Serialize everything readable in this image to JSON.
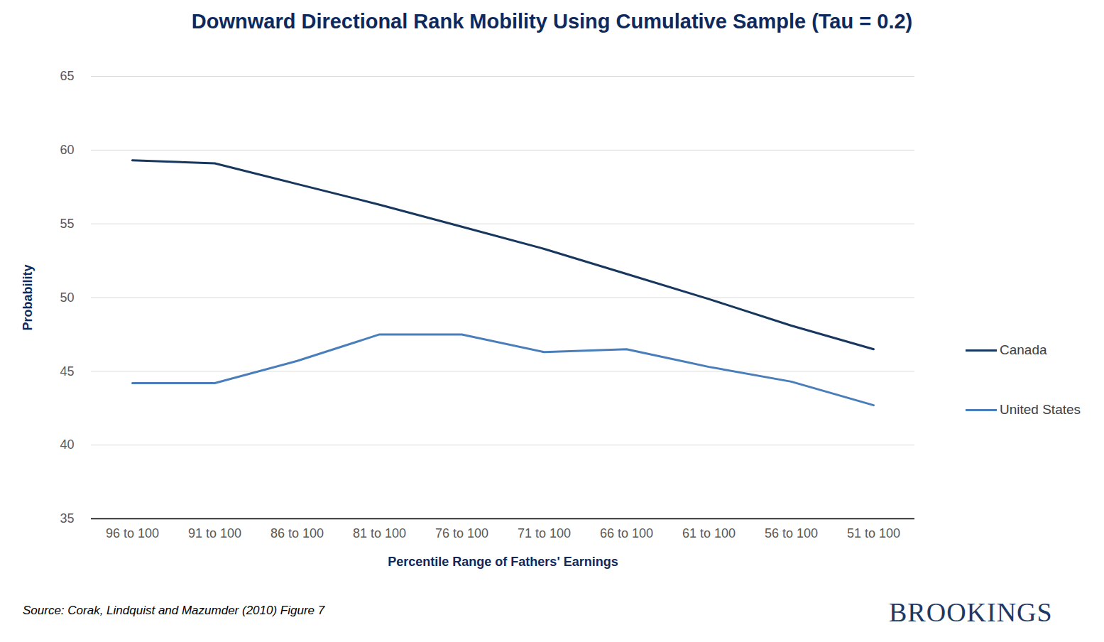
{
  "chart_data": {
    "type": "line",
    "title": "Downward Directional Rank Mobility Using Cumulative Sample (Tau = 0.2)",
    "x_label": "Percentile Range of Fathers' Earnings",
    "y_label": "Probability",
    "categories": [
      "96 to 100",
      "91 to 100",
      "86 to 100",
      "81 to 100",
      "76 to 100",
      "71 to 100",
      "66 to 100",
      "61 to 100",
      "56 to 100",
      "51 to 100"
    ],
    "series": [
      {
        "name": "Canada",
        "color": "#17375e",
        "values": [
          59.3,
          59.1,
          57.7,
          56.3,
          54.8,
          53.3,
          51.6,
          49.9,
          48.1,
          46.5
        ]
      },
      {
        "name": "United States",
        "color": "#4a7ebb",
        "values": [
          44.2,
          44.2,
          45.7,
          47.5,
          47.5,
          46.3,
          46.5,
          45.3,
          44.3,
          42.7
        ]
      }
    ],
    "ylim": [
      35,
      65
    ],
    "yticks": [
      35,
      40,
      45,
      50,
      55,
      60,
      65
    ],
    "grid": true,
    "legend": "right",
    "caption": "Source:  Corak, Lindquist and Mazumder (2010) Figure 7",
    "annotations": [
      "BROOKINGS"
    ]
  }
}
